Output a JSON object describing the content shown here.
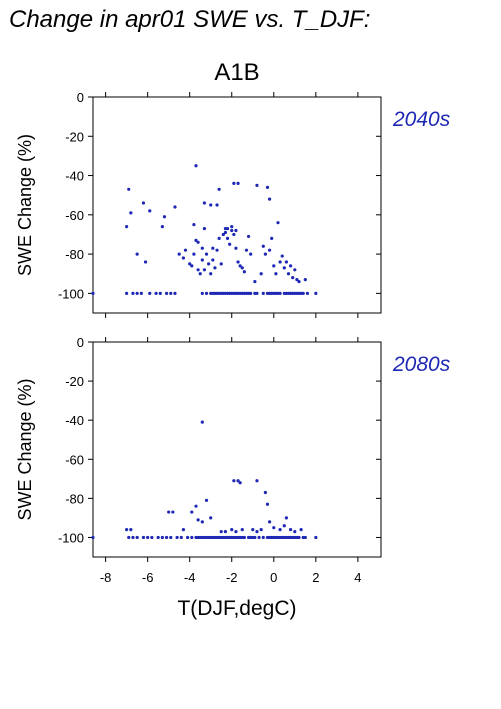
{
  "title": "Change in apr01 SWE vs. T_DJF:",
  "scenario": "A1B",
  "xlabel": "T(DJF,degC)",
  "ylabel": "SWE Change (%)",
  "point_color": "#1e28b4",
  "chart_data": [
    {
      "type": "scatter",
      "period": "2040s",
      "ylabel": "SWE Change (%)",
      "xlim": [
        -8.6,
        5.1
      ],
      "ylim": [
        -110,
        0
      ],
      "yticks": [
        0,
        -20,
        -40,
        -60,
        -80,
        -100
      ],
      "grid": false,
      "points": [
        [
          -8.6,
          -100
        ],
        [
          -7.0,
          -66
        ],
        [
          -6.9,
          -47
        ],
        [
          -6.8,
          -59
        ],
        [
          -6.5,
          -80
        ],
        [
          -6.2,
          -54
        ],
        [
          -6.1,
          -84
        ],
        [
          -5.9,
          -58
        ],
        [
          -5.3,
          -66
        ],
        [
          -5.2,
          -61
        ],
        [
          -4.7,
          -56
        ],
        [
          -3.7,
          -35
        ],
        [
          -3.3,
          -54
        ],
        [
          -3.3,
          -67
        ],
        [
          -3.0,
          -55
        ],
        [
          -2.7,
          -55
        ],
        [
          -2.6,
          -47
        ],
        [
          -2.3,
          -67
        ],
        [
          -1.9,
          -44
        ],
        [
          -1.7,
          -44
        ],
        [
          -1.2,
          -71
        ],
        [
          -0.8,
          -45
        ],
        [
          -0.3,
          -46
        ],
        [
          -0.2,
          -52
        ],
        [
          -0.1,
          -72
        ],
        [
          0.2,
          -64
        ],
        [
          0.6,
          -84
        ],
        [
          1.1,
          -93
        ],
        [
          1.5,
          -93
        ],
        [
          -4.5,
          -80
        ],
        [
          -4.3,
          -82
        ],
        [
          -4.2,
          -78
        ],
        [
          -4.0,
          -85
        ],
        [
          -3.9,
          -86
        ],
        [
          -3.8,
          -80
        ],
        [
          -3.7,
          -73
        ],
        [
          -3.6,
          -88
        ],
        [
          -3.5,
          -90
        ],
        [
          -3.4,
          -83
        ],
        [
          -3.3,
          -88
        ],
        [
          -3.2,
          -80
        ],
        [
          -3.1,
          -85
        ],
        [
          -3.0,
          -90
        ],
        [
          -2.9,
          -83
        ],
        [
          -2.8,
          -87
        ],
        [
          -2.7,
          -78
        ],
        [
          -2.6,
          -72
        ],
        [
          -2.5,
          -85
        ],
        [
          -2.4,
          -70
        ],
        [
          -2.3,
          -69
        ],
        [
          -2.2,
          -72
        ],
        [
          -2.1,
          -75
        ],
        [
          -2.0,
          -68
        ],
        [
          -1.9,
          -70
        ],
        [
          -1.8,
          -77
        ],
        [
          -1.7,
          -84
        ],
        [
          -1.6,
          -86
        ],
        [
          -1.5,
          -87
        ],
        [
          -1.4,
          -89
        ],
        [
          -1.3,
          -78
        ],
        [
          -1.1,
          -80
        ],
        [
          -3.8,
          -65
        ],
        [
          -3.6,
          -74
        ],
        [
          -3.4,
          -77
        ],
        [
          -2.2,
          -67
        ],
        [
          -2.0,
          -66
        ],
        [
          -1.8,
          -68
        ],
        [
          -0.5,
          -76
        ],
        [
          -0.4,
          -80
        ],
        [
          -0.2,
          -78
        ],
        [
          0.0,
          -86
        ],
        [
          0.1,
          -90
        ],
        [
          0.3,
          -84
        ],
        [
          0.4,
          -81
        ],
        [
          0.5,
          -87
        ],
        [
          0.7,
          -90
        ],
        [
          0.8,
          -86
        ],
        [
          0.9,
          -92
        ],
        [
          1.0,
          -88
        ],
        [
          1.2,
          -94
        ],
        [
          -0.6,
          -90
        ],
        [
          -0.9,
          -94
        ],
        [
          -2.9,
          -77
        ],
        [
          -7.0,
          -100
        ],
        [
          -6.7,
          -100
        ],
        [
          -6.5,
          -100
        ],
        [
          -6.3,
          -100
        ],
        [
          -5.9,
          -100
        ],
        [
          -5.6,
          -100
        ],
        [
          -5.4,
          -100
        ],
        [
          -5.1,
          -100
        ],
        [
          -4.9,
          -100
        ],
        [
          -4.7,
          -100
        ],
        [
          -3.4,
          -100
        ],
        [
          -3.2,
          -100
        ],
        [
          -3.0,
          -100
        ],
        [
          -2.9,
          -100
        ],
        [
          -2.8,
          -100
        ],
        [
          -2.7,
          -100
        ],
        [
          -2.6,
          -100
        ],
        [
          -2.5,
          -100
        ],
        [
          -2.4,
          -100
        ],
        [
          -2.3,
          -100
        ],
        [
          -2.2,
          -100
        ],
        [
          -2.1,
          -100
        ],
        [
          -2.0,
          -100
        ],
        [
          -1.9,
          -100
        ],
        [
          -1.8,
          -100
        ],
        [
          -1.7,
          -100
        ],
        [
          -1.6,
          -100
        ],
        [
          -1.5,
          -100
        ],
        [
          -1.4,
          -100
        ],
        [
          -1.3,
          -100
        ],
        [
          -1.2,
          -100
        ],
        [
          -1.1,
          -100
        ],
        [
          -0.9,
          -100
        ],
        [
          -0.8,
          -100
        ],
        [
          -0.5,
          -100
        ],
        [
          -0.3,
          -100
        ],
        [
          -0.2,
          -100
        ],
        [
          -0.1,
          -100
        ],
        [
          0.0,
          -100
        ],
        [
          0.1,
          -100
        ],
        [
          0.2,
          -100
        ],
        [
          0.3,
          -100
        ],
        [
          0.5,
          -100
        ],
        [
          0.6,
          -100
        ],
        [
          0.7,
          -100
        ],
        [
          0.8,
          -100
        ],
        [
          0.9,
          -100
        ],
        [
          1.0,
          -100
        ],
        [
          1.1,
          -100
        ],
        [
          1.2,
          -100
        ],
        [
          1.3,
          -100
        ],
        [
          1.4,
          -100
        ],
        [
          1.6,
          -100
        ],
        [
          2.0,
          -100
        ]
      ]
    },
    {
      "type": "scatter",
      "period": "2080s",
      "ylabel": "SWE Change (%)",
      "xlabel": "T(DJF,degC)",
      "xlim": [
        -8.6,
        5.1
      ],
      "ylim": [
        -110,
        0
      ],
      "yticks": [
        0,
        -20,
        -40,
        -60,
        -80,
        -100
      ],
      "xticks": [
        -8,
        -6,
        -4,
        -2,
        0,
        2,
        4
      ],
      "grid": false,
      "points": [
        [
          -3.4,
          -41
        ],
        [
          -1.9,
          -71
        ],
        [
          -1.7,
          -71
        ],
        [
          -1.6,
          -72
        ],
        [
          -0.8,
          -71
        ],
        [
          -0.4,
          -77
        ],
        [
          -5.0,
          -87
        ],
        [
          -4.8,
          -87
        ],
        [
          -3.9,
          -87
        ],
        [
          -3.7,
          -84
        ],
        [
          -3.6,
          -91
        ],
        [
          -3.4,
          -92
        ],
        [
          -3.2,
          -81
        ],
        [
          -3.0,
          -90
        ],
        [
          -2.5,
          -97
        ],
        [
          -2.3,
          -97
        ],
        [
          -2.0,
          -96
        ],
        [
          -1.8,
          -97
        ],
        [
          -1.5,
          -96
        ],
        [
          -1.0,
          -96
        ],
        [
          -0.8,
          -97
        ],
        [
          -0.6,
          -96
        ],
        [
          -0.3,
          -83
        ],
        [
          -0.2,
          -92
        ],
        [
          0.0,
          -95
        ],
        [
          0.3,
          -96
        ],
        [
          0.5,
          -94
        ],
        [
          0.6,
          -90
        ],
        [
          0.8,
          -96
        ],
        [
          1.0,
          -97
        ],
        [
          1.3,
          -96
        ],
        [
          -7.0,
          -96
        ],
        [
          -6.8,
          -96
        ],
        [
          -4.3,
          -96
        ],
        [
          -8.6,
          -100
        ],
        [
          -6.9,
          -100
        ],
        [
          -6.7,
          -100
        ],
        [
          -6.5,
          -100
        ],
        [
          -6.2,
          -100
        ],
        [
          -6.0,
          -100
        ],
        [
          -5.8,
          -100
        ],
        [
          -5.5,
          -100
        ],
        [
          -5.3,
          -100
        ],
        [
          -5.1,
          -100
        ],
        [
          -4.9,
          -100
        ],
        [
          -4.6,
          -100
        ],
        [
          -4.4,
          -100
        ],
        [
          -4.1,
          -100
        ],
        [
          -3.9,
          -100
        ],
        [
          -3.7,
          -100
        ],
        [
          -3.6,
          -100
        ],
        [
          -3.5,
          -100
        ],
        [
          -3.4,
          -100
        ],
        [
          -3.3,
          -100
        ],
        [
          -3.2,
          -100
        ],
        [
          -3.1,
          -100
        ],
        [
          -3.0,
          -100
        ],
        [
          -2.9,
          -100
        ],
        [
          -2.8,
          -100
        ],
        [
          -2.7,
          -100
        ],
        [
          -2.6,
          -100
        ],
        [
          -2.5,
          -100
        ],
        [
          -2.4,
          -100
        ],
        [
          -2.3,
          -100
        ],
        [
          -2.2,
          -100
        ],
        [
          -2.1,
          -100
        ],
        [
          -2.0,
          -100
        ],
        [
          -1.9,
          -100
        ],
        [
          -1.8,
          -100
        ],
        [
          -1.7,
          -100
        ],
        [
          -1.6,
          -100
        ],
        [
          -1.5,
          -100
        ],
        [
          -1.4,
          -100
        ],
        [
          -1.2,
          -100
        ],
        [
          -1.1,
          -100
        ],
        [
          -1.0,
          -100
        ],
        [
          -0.9,
          -100
        ],
        [
          -0.7,
          -100
        ],
        [
          -0.5,
          -100
        ],
        [
          -0.3,
          -100
        ],
        [
          -0.2,
          -100
        ],
        [
          -0.1,
          -100
        ],
        [
          0.0,
          -100
        ],
        [
          0.1,
          -100
        ],
        [
          0.2,
          -100
        ],
        [
          0.3,
          -100
        ],
        [
          0.4,
          -100
        ],
        [
          0.5,
          -100
        ],
        [
          0.6,
          -100
        ],
        [
          0.7,
          -100
        ],
        [
          0.8,
          -100
        ],
        [
          0.9,
          -100
        ],
        [
          1.0,
          -100
        ],
        [
          1.1,
          -100
        ],
        [
          1.2,
          -100
        ],
        [
          1.4,
          -100
        ],
        [
          1.5,
          -100
        ],
        [
          2.0,
          -100
        ]
      ]
    }
  ]
}
